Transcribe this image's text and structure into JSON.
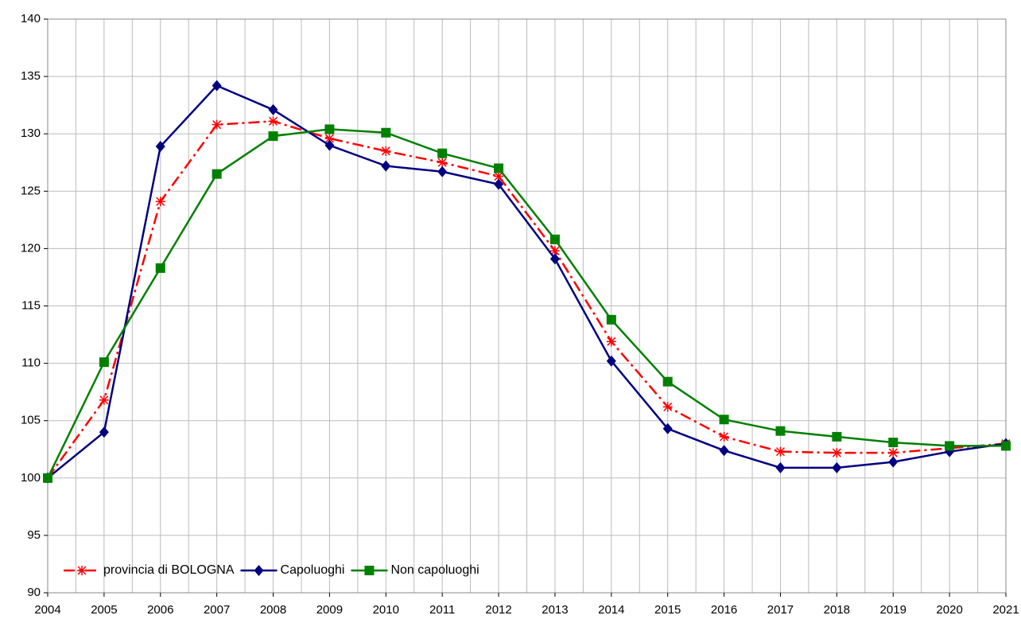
{
  "chart_data": {
    "type": "line",
    "x": [
      2004,
      2005,
      2006,
      2007,
      2008,
      2009,
      2010,
      2011,
      2012,
      2013,
      2014,
      2015,
      2016,
      2017,
      2018,
      2019,
      2020,
      2021
    ],
    "series": [
      {
        "name": "provincia di BOLOGNA",
        "color": "#ff0000",
        "marker": "star",
        "dash": "dash-dot",
        "values": [
          100,
          106.8,
          124.1,
          130.8,
          131.1,
          129.6,
          128.5,
          127.5,
          126.3,
          119.8,
          111.9,
          106.2,
          103.6,
          102.3,
          102.2,
          102.2,
          102.6,
          103.0
        ]
      },
      {
        "name": "Capoluoghi",
        "color": "#000080",
        "marker": "diamond",
        "dash": "solid",
        "values": [
          100,
          104.0,
          128.9,
          134.2,
          132.1,
          129.0,
          127.2,
          126.7,
          125.6,
          119.1,
          110.2,
          104.3,
          102.4,
          100.9,
          100.9,
          101.4,
          102.3,
          103.0
        ]
      },
      {
        "name": "Non capoluoghi",
        "color": "#008000",
        "marker": "square",
        "dash": "solid",
        "values": [
          100,
          110.1,
          118.3,
          126.5,
          129.8,
          130.4,
          130.1,
          128.3,
          127.0,
          120.8,
          113.8,
          108.4,
          105.1,
          104.1,
          103.6,
          103.1,
          102.8,
          102.8
        ]
      }
    ],
    "xlim": [
      2004,
      2021
    ],
    "xticks": [
      2004,
      2005,
      2006,
      2007,
      2008,
      2009,
      2010,
      2011,
      2012,
      2013,
      2014,
      2015,
      2016,
      2017,
      2018,
      2019,
      2020,
      2021
    ],
    "ylim": [
      90,
      140
    ],
    "yticks": [
      90,
      95,
      100,
      105,
      110,
      115,
      120,
      125,
      130,
      135,
      140
    ],
    "grid": true,
    "x_minor_grid": true,
    "legend": "lower left"
  }
}
